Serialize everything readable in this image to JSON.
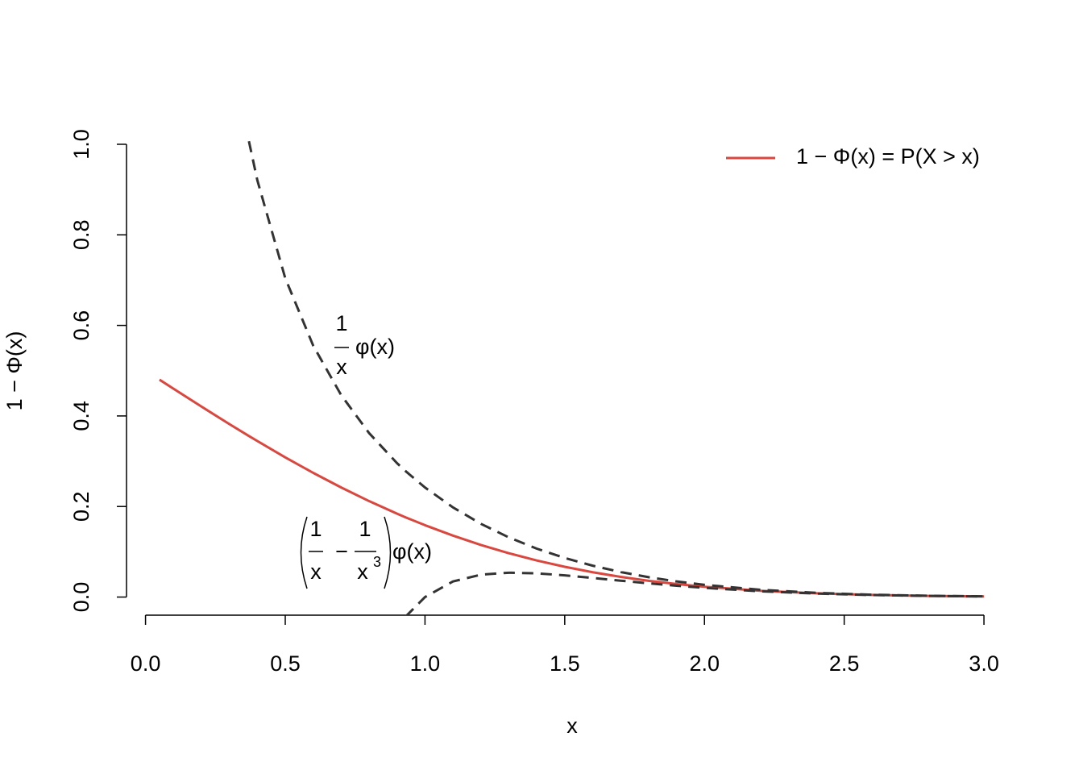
{
  "chart_data": {
    "type": "line",
    "xlabel": "x",
    "ylabel": "1 − Φ(x)",
    "x": [
      0.05,
      0.1,
      0.2,
      0.3,
      0.37,
      0.4,
      0.5,
      0.6,
      0.7,
      0.8,
      0.9,
      0.93,
      1.0,
      1.1,
      1.2,
      1.3,
      1.4,
      1.5,
      1.6,
      1.7,
      1.8,
      1.9,
      2.0,
      2.2,
      2.4,
      2.6,
      2.8,
      3.0
    ],
    "series": [
      {
        "name": "1 − Φ(x) = P(X > x)",
        "color": "#d9473f",
        "dashed": false,
        "values": [
          0.4801,
          0.4602,
          0.4207,
          0.3821,
          0.3557,
          0.3446,
          0.3085,
          0.2743,
          0.242,
          0.2119,
          0.1841,
          0.1762,
          0.1587,
          0.1357,
          0.1151,
          0.0968,
          0.0808,
          0.0668,
          0.0548,
          0.0446,
          0.0359,
          0.0287,
          0.0228,
          0.0139,
          0.0082,
          0.0047,
          0.0026,
          0.0013
        ]
      },
      {
        "color": "#333333",
        "dashed": true,
        "values": [
          null,
          null,
          null,
          null,
          1.0068,
          0.9208,
          0.7042,
          0.5553,
          0.4461,
          0.3621,
          0.2957,
          0.2784,
          0.242,
          0.1981,
          0.1618,
          0.1318,
          0.1069,
          0.0863,
          0.0693,
          0.0553,
          0.0439,
          0.0345,
          0.027,
          0.0161,
          0.0093,
          0.0052,
          0.0028,
          0.0015
        ]
      },
      {
        "color": "#333333",
        "dashed": true,
        "values": [
          null,
          null,
          null,
          null,
          null,
          null,
          null,
          null,
          null,
          null,
          null,
          -0.0435,
          0,
          0.0344,
          0.0494,
          0.0538,
          0.0524,
          0.048,
          0.0422,
          0.0362,
          0.0303,
          0.025,
          0.0203,
          0.0128,
          0.0077,
          0.0045,
          0.0025,
          0.0013
        ]
      }
    ],
    "xlim": [
      -0.068,
      3.118
    ],
    "ylim": [
      -0.04,
      1.04
    ],
    "xticks": [
      {
        "value": 0,
        "label": "0.0"
      },
      0.5,
      {
        "value": 1,
        "label": "1.0"
      },
      1.5,
      {
        "value": 2,
        "label": "2.0"
      },
      2.5,
      {
        "value": 3,
        "label": "3.0"
      }
    ],
    "yticks": [
      {
        "value": 0,
        "label": "0.0"
      },
      0.2,
      0.4,
      0.6,
      0.8,
      {
        "value": 1,
        "label": "1.0"
      }
    ],
    "legend": "topright",
    "annotations": [
      {
        "numerator": "1",
        "denominator": "x",
        "text": "φ(x)"
      },
      {
        "numerator1": "1",
        "denominator1": "x",
        "operator": "−",
        "numerator2": "1",
        "denominator2": "x",
        "exponent2": "3",
        "text": "φ(x)"
      }
    ]
  }
}
